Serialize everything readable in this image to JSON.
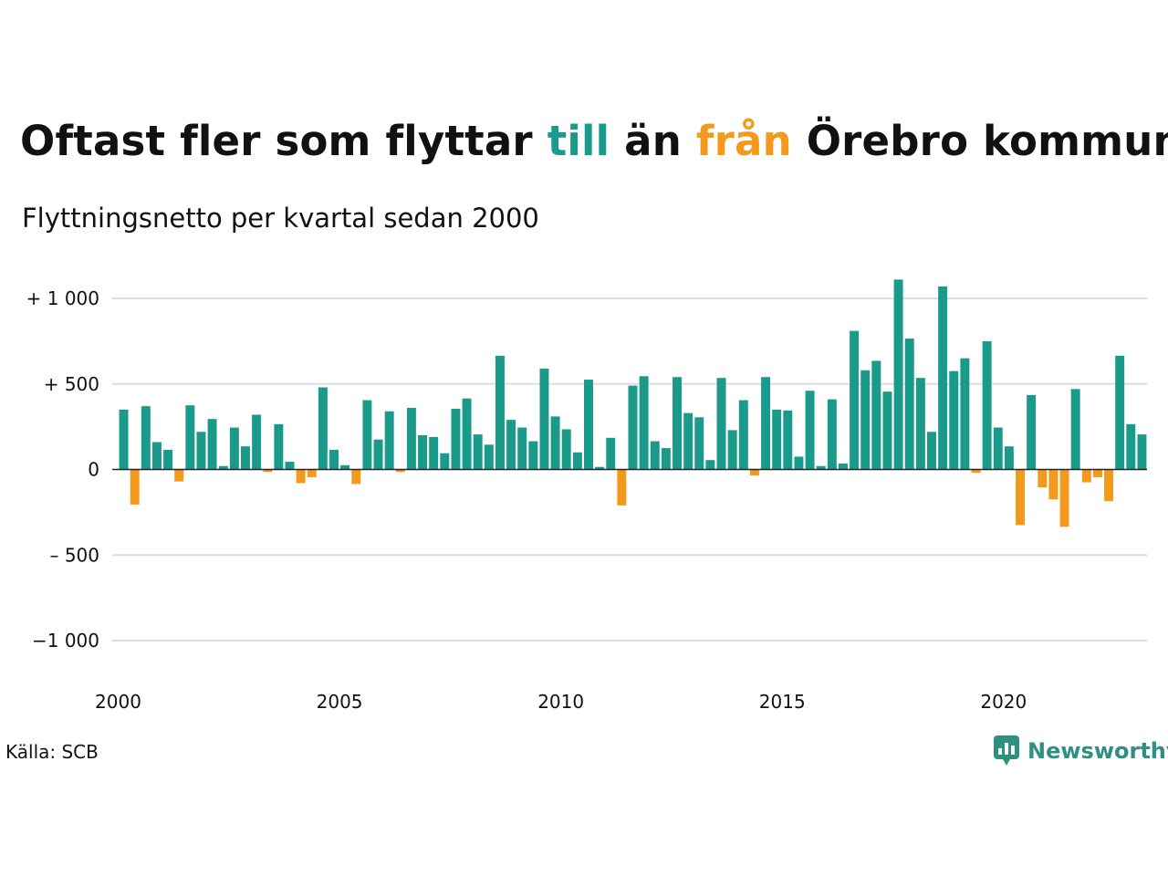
{
  "title": {
    "before": "Oftast fler som flyttar ",
    "word_in": "till",
    "middle": " än ",
    "word_out": "från",
    "after": " Örebro kommun"
  },
  "subtitle": "Flyttningsnetto per kvartal sedan 2000",
  "source": "Källa: SCB",
  "brand": {
    "name": "Newsworthy"
  },
  "colors": {
    "positive": "#1a9a8a",
    "negative": "#f39a1c",
    "grid": "#dddddd"
  },
  "chart_data": {
    "type": "bar",
    "x_start": "2000 Q1",
    "x_ticks": [
      "2000",
      "2005",
      "2010",
      "2015",
      "2020"
    ],
    "y_ticks": [
      {
        "value": 1000,
        "label": "+ 1 000"
      },
      {
        "value": 500,
        "label": "+   500"
      },
      {
        "value": 0,
        "label": "0"
      },
      {
        "value": -500,
        "label": "–  500"
      },
      {
        "value": -1000,
        "label": "−1 000"
      }
    ],
    "ylim": [
      -1000,
      1200
    ],
    "grid": true,
    "values": [
      350,
      -205,
      370,
      160,
      115,
      -70,
      375,
      220,
      295,
      20,
      245,
      135,
      320,
      -15,
      265,
      45,
      -80,
      -45,
      480,
      115,
      25,
      -85,
      405,
      175,
      340,
      -15,
      360,
      200,
      190,
      95,
      355,
      415,
      205,
      145,
      665,
      290,
      245,
      165,
      590,
      310,
      235,
      100,
      525,
      15,
      185,
      -210,
      490,
      545,
      165,
      125,
      540,
      330,
      305,
      55,
      535,
      230,
      405,
      -35,
      540,
      350,
      345,
      75,
      460,
      20,
      410,
      35,
      810,
      580,
      635,
      455,
      1110,
      765,
      535,
      220,
      1070,
      575,
      650,
      -20,
      750,
      245,
      135,
      -325,
      435,
      -105,
      -175,
      -335,
      470,
      -75,
      -45,
      -185,
      665,
      265,
      205
    ]
  }
}
